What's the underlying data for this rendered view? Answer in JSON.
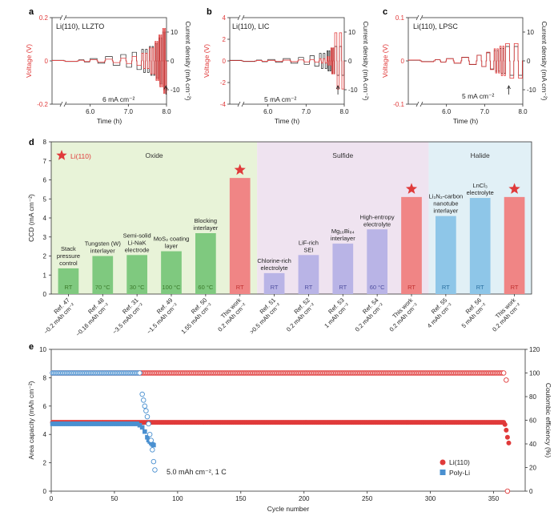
{
  "colors": {
    "red": "#e03a3a",
    "red_fill": "#f08585",
    "green_bar": "#7fc97f",
    "purple_bar": "#b9b4e6",
    "blue_bar": "#8ec6e8",
    "green_bg": "#e8f3d8",
    "purple_bg": "#efe3f0",
    "blue_bg": "#e1f0f6",
    "blue_series": "#4a90d0",
    "black": "#222222"
  },
  "panel_labels": {
    "a": "a",
    "b": "b",
    "c": "c",
    "d": "d",
    "e": "e"
  },
  "chart_data": [
    {
      "id": "a",
      "type": "line",
      "title": "Li(110), LLZTO",
      "xlabel": "Time (h)",
      "ylabel": "Voltage (V)",
      "y2label": "Current density (mA cm⁻²)",
      "xticks": [
        "6.0",
        "7.0",
        "8.0"
      ],
      "xlim": [
        5.0,
        8.0
      ],
      "ylim": [
        -0.2,
        0.2
      ],
      "yticks": [
        "0.2",
        "0",
        "-0.2"
      ],
      "y2lim": [
        -15,
        15
      ],
      "y2ticks": [
        "10",
        "0",
        "-10"
      ],
      "annotation": "6 mA cm⁻²",
      "voltage_series": {
        "name": "Voltage",
        "x": [
          5.0,
          5.7,
          6.0,
          6.4,
          6.8,
          7.1,
          7.35,
          7.55,
          7.7,
          7.8,
          7.9
        ],
        "amplitude": [
          0.002,
          0.003,
          0.005,
          0.008,
          0.012,
          0.02,
          0.035,
          0.06,
          0.09,
          0.12,
          0.15
        ]
      },
      "current_series": {
        "name": "Current density",
        "x": [
          5.0,
          5.7,
          6.0,
          6.4,
          6.8,
          7.1,
          7.35,
          7.55,
          7.7,
          7.8,
          7.9
        ],
        "amplitude": [
          0.2,
          0.4,
          0.8,
          1.5,
          2.2,
          3,
          4,
          5,
          6,
          8,
          10
        ]
      }
    },
    {
      "id": "b",
      "type": "line",
      "title": "Li(110), LIC",
      "xlabel": "Time (h)",
      "ylabel": "Voltage (V)",
      "y2label": "Current density (mA cm⁻²)",
      "xticks": [
        "6.0",
        "7.0",
        "8.0"
      ],
      "xlim": [
        5.0,
        8.0
      ],
      "ylim": [
        -4,
        4
      ],
      "yticks": [
        "4",
        "2",
        "0",
        "-2",
        "-4"
      ],
      "y2lim": [
        -15,
        15
      ],
      "y2ticks": [
        "10",
        "0",
        "-10"
      ],
      "annotation": "5 mA cm⁻²",
      "voltage_series": {
        "name": "Voltage",
        "x": [
          5.0,
          5.7,
          6.0,
          6.4,
          6.8,
          7.1,
          7.35,
          7.55,
          7.65,
          7.75
        ],
        "amplitude": [
          0.03,
          0.04,
          0.05,
          0.07,
          0.09,
          0.12,
          0.2,
          0.4,
          1.2,
          2.6
        ]
      },
      "current_series": {
        "name": "Current density",
        "x": [
          5.0,
          5.7,
          6.0,
          6.4,
          6.8,
          7.1,
          7.35,
          7.55,
          7.65,
          7.75
        ],
        "amplitude": [
          0.2,
          0.3,
          0.5,
          0.8,
          1.2,
          1.8,
          2.6,
          3.5,
          4.5,
          5
        ]
      }
    },
    {
      "id": "c",
      "type": "line",
      "title": "Li(110), LPSC",
      "xlabel": "Time (h)",
      "ylabel": "Voltage (V)",
      "y2label": "Current density (mA cm⁻²)",
      "xticks": [
        "6.0",
        "7.0",
        "8.0"
      ],
      "xlim": [
        5.0,
        8.0
      ],
      "ylim": [
        -0.1,
        0.1
      ],
      "yticks": [
        "0.1",
        "0",
        "-0.1"
      ],
      "y2lim": [
        -15,
        15
      ],
      "y2ticks": [
        "10",
        "0",
        "-10"
      ],
      "annotation": "5 mA cm⁻²",
      "voltage_series": {
        "name": "Voltage",
        "x": [
          5.0,
          5.7,
          6.0,
          6.4,
          6.8,
          7.05,
          7.25,
          7.4,
          7.55
        ],
        "amplitude": [
          0.002,
          0.003,
          0.005,
          0.008,
          0.013,
          0.02,
          0.028,
          0.034,
          0.04
        ]
      },
      "current_series": {
        "name": "Current density",
        "x": [
          5.0,
          5.7,
          6.0,
          6.4,
          6.8,
          7.05,
          7.25,
          7.4,
          7.55
        ],
        "amplitude": [
          0.2,
          0.4,
          0.8,
          1.3,
          2,
          2.8,
          3.6,
          4.3,
          5
        ]
      }
    },
    {
      "id": "d",
      "type": "bar",
      "ylabel": "CCD (mA cm⁻²)",
      "ylim": [
        0,
        8
      ],
      "yticks": [
        0,
        1,
        2,
        3,
        4,
        5,
        6,
        7,
        8
      ],
      "star_legend": "Li(110)",
      "groups": [
        {
          "name": "Oxide",
          "from": 0,
          "to": 6
        },
        {
          "name": "Sulfide",
          "from": 6,
          "to": 11
        },
        {
          "name": "Halide",
          "from": 11,
          "to": 14
        }
      ],
      "bars": [
        {
          "value": 1.35,
          "kind": "green",
          "desc": [
            "Stack",
            "pressure",
            "control"
          ],
          "temp": "RT",
          "tick": [
            "Ref. 47",
            "~0.2 mAh cm⁻²"
          ],
          "star": false
        },
        {
          "value": 2.0,
          "kind": "green",
          "desc": [
            "Tungsten (W)",
            "interlayer"
          ],
          "temp": "70 °C",
          "tick": [
            "Ref. 48",
            "~0.16 mAh cm⁻²"
          ],
          "star": false
        },
        {
          "value": 2.05,
          "kind": "green",
          "desc": [
            "Semi-solid",
            "Li-NaK",
            "electrode"
          ],
          "temp": "30 °C",
          "tick": [
            "Ref. 31",
            "~3.5 mAh cm⁻²"
          ],
          "star": false
        },
        {
          "value": 2.25,
          "kind": "green",
          "desc": [
            "MoS₂ coating",
            "layer"
          ],
          "temp": "100 °C",
          "tick": [
            "Ref. 49",
            "~1.5 mAh cm⁻²"
          ],
          "star": false
        },
        {
          "value": 3.2,
          "kind": "green",
          "desc": [
            "Blocking",
            "interlayer"
          ],
          "temp": "60 °C",
          "tick": [
            "Ref. 50",
            "1.55 mAh cm⁻²"
          ],
          "star": false
        },
        {
          "value": 6.1,
          "kind": "red",
          "desc": [],
          "temp": "RT",
          "tick": [
            "This work",
            "0.2 mAh cm⁻²"
          ],
          "star": true
        },
        {
          "value": 1.1,
          "kind": "purple",
          "desc": [
            "Chlorine-rich",
            "electrolyte"
          ],
          "temp": "RT",
          "tick": [
            "Ref. 51",
            ">0.5 mAh cm⁻²"
          ],
          "star": false
        },
        {
          "value": 2.05,
          "kind": "purple",
          "desc": [
            "LiF-rich",
            "SEI"
          ],
          "temp": "RT",
          "tick": [
            "Ref. 52",
            "0.2 mAh cm⁻²"
          ],
          "star": false
        },
        {
          "value": 2.65,
          "kind": "purple",
          "desc": [
            "Mg₁₆Bi₈₄",
            "interlayer"
          ],
          "temp": "RT",
          "tick": [
            "Ref. 53",
            "1 mAh cm⁻²"
          ],
          "star": false
        },
        {
          "value": 3.4,
          "kind": "purple",
          "desc": [
            "High-entropy",
            "electrolyte"
          ],
          "temp": "60 °C",
          "tick": [
            "Ref. 54",
            "0.2 mAh cm⁻²"
          ],
          "star": false
        },
        {
          "value": 5.1,
          "kind": "red",
          "desc": [],
          "temp": "RT",
          "tick": [
            "This work",
            "0.2 mAh cm⁻²"
          ],
          "star": true
        },
        {
          "value": 4.1,
          "kind": "blue",
          "desc": [
            "Li₃N₂-carbon",
            "nanotube",
            "interlayer"
          ],
          "temp": "RT",
          "tick": [
            "Ref. 55",
            "4 mAh cm⁻²"
          ],
          "star": false
        },
        {
          "value": 5.05,
          "kind": "blue",
          "desc": [
            "LnCl₃",
            "electrolyte"
          ],
          "temp": "RT",
          "tick": [
            "Ref. 56",
            "5 mAh cm⁻²"
          ],
          "star": false
        },
        {
          "value": 5.1,
          "kind": "red",
          "desc": [],
          "temp": "RT",
          "tick": [
            "This work",
            "0.2 mAh cm⁻²"
          ],
          "star": true
        }
      ]
    },
    {
      "id": "e",
      "type": "scatter",
      "xlabel": "Cycle number",
      "ylabel": "Area capacity (mAh cm⁻²)",
      "y2label": "Coulombic efficiency (%)",
      "xlim": [
        0,
        375
      ],
      "xticks": [
        0,
        50,
        100,
        150,
        200,
        250,
        300,
        350
      ],
      "ylim": [
        0,
        10
      ],
      "yticks": [
        0,
        2,
        4,
        6,
        8,
        10
      ],
      "y2lim": [
        0,
        120
      ],
      "y2ticks": [
        0,
        20,
        40,
        60,
        80,
        100,
        120
      ],
      "annotation": "5.0 mAh cm⁻², 1 C",
      "legend": [
        "Li(110)",
        "Poly-Li"
      ],
      "series": [
        {
          "name": "Li(110)",
          "axis": "left",
          "marker": "filled-circle",
          "color": "red",
          "x_range": [
            1,
            358
          ],
          "y": 4.85,
          "tail": [
            {
              "x": 359,
              "y": 4.7
            },
            {
              "x": 360,
              "y": 4.3
            },
            {
              "x": 361,
              "y": 3.8
            },
            {
              "x": 362,
              "y": 3.4
            }
          ]
        },
        {
          "name": "Li(110) CE",
          "axis": "right",
          "marker": "open-circle",
          "color": "red",
          "x_range": [
            1,
            358
          ],
          "y": 100,
          "tail": [
            {
              "x": 360,
              "y": 94
            },
            {
              "x": 361,
              "y": 0
            }
          ]
        },
        {
          "name": "Poly-Li",
          "axis": "left",
          "marker": "filled-square",
          "color": "blue",
          "x_range": [
            1,
            68
          ],
          "y": 4.75,
          "tail": [
            {
              "x": 70,
              "y": 4.65
            },
            {
              "x": 72,
              "y": 4.5
            },
            {
              "x": 74,
              "y": 4.2
            },
            {
              "x": 76,
              "y": 3.8
            },
            {
              "x": 77,
              "y": 3.6
            },
            {
              "x": 78,
              "y": 3.5
            },
            {
              "x": 79,
              "y": 3.4
            },
            {
              "x": 80,
              "y": 3.3
            },
            {
              "x": 81,
              "y": 3.25
            }
          ]
        },
        {
          "name": "Poly-Li CE",
          "axis": "right",
          "marker": "open-circle",
          "color": "blue",
          "x_range": [
            1,
            70
          ],
          "y": 100,
          "tail": [
            {
              "x": 72,
              "y": 82
            },
            {
              "x": 73,
              "y": 77
            },
            {
              "x": 74,
              "y": 72
            },
            {
              "x": 75,
              "y": 68
            },
            {
              "x": 76,
              "y": 63
            },
            {
              "x": 77,
              "y": 57
            },
            {
              "x": 78,
              "y": 48
            },
            {
              "x": 79,
              "y": 43
            },
            {
              "x": 80,
              "y": 35
            },
            {
              "x": 81,
              "y": 25
            },
            {
              "x": 82,
              "y": 18
            }
          ]
        }
      ]
    }
  ]
}
